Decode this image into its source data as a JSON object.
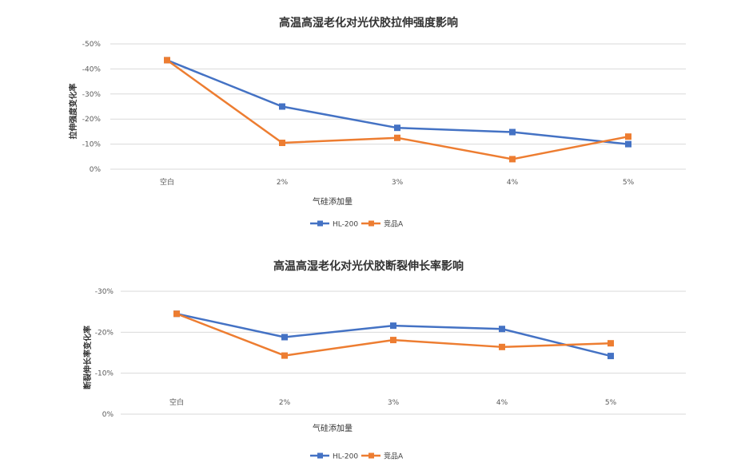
{
  "chart_data": [
    {
      "type": "line",
      "title": "高温高湿老化对光伏胶拉伸强度影响",
      "xlabel": "气硅添加量",
      "ylabel": "拉伸强度变化率",
      "categories": [
        "空白",
        "2%",
        "3%",
        "4%",
        "5%"
      ],
      "y_ticks": [
        "-50%",
        "-40%",
        "-30%",
        "-20%",
        "-10%",
        "0%"
      ],
      "ylim": [
        0,
        -50
      ],
      "grid": true,
      "legend_position": "bottom",
      "series": [
        {
          "name": "HL-200",
          "color": "#4472C4",
          "values": [
            -43.5,
            -25,
            -16.5,
            -14.8,
            -10
          ]
        },
        {
          "name": "竞品A",
          "color": "#ED7D31",
          "values": [
            -43.5,
            -10.5,
            -12.5,
            -4,
            -13
          ]
        }
      ]
    },
    {
      "type": "line",
      "title": "高温高湿老化对光伏胶断裂伸长率影响",
      "xlabel": "气硅添加量",
      "ylabel": "断裂伸长率变化率",
      "categories": [
        "空白",
        "2%",
        "3%",
        "4%",
        "5%"
      ],
      "y_ticks": [
        "-30%",
        "-20%",
        "-10%",
        "0%"
      ],
      "ylim": [
        0,
        -30
      ],
      "grid": true,
      "legend_position": "bottom",
      "series": [
        {
          "name": "HL-200",
          "color": "#4472C4",
          "values": [
            -24.5,
            -18.8,
            -21.6,
            -20.8,
            -14.2
          ]
        },
        {
          "name": "竞品A",
          "color": "#ED7D31",
          "values": [
            -24.5,
            -14.3,
            -18.1,
            -16.4,
            -17.3
          ]
        }
      ]
    }
  ]
}
